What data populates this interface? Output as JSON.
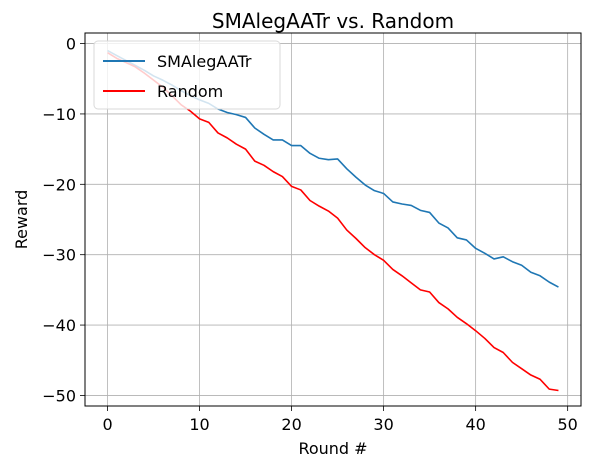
{
  "chart_data": {
    "type": "line",
    "title": "SMAlegAATr vs. Random",
    "xlabel": "Round #",
    "ylabel": "Reward",
    "xlim": [
      -2.45,
      51.45
    ],
    "ylim": [
      -51.5,
      1.5
    ],
    "xticks": [
      0,
      10,
      20,
      30,
      40,
      50
    ],
    "yticks": [
      0,
      -10,
      -20,
      -30,
      -40,
      -50
    ],
    "xtick_labels": [
      "0",
      "10",
      "20",
      "30",
      "40",
      "50"
    ],
    "ytick_labels": [
      "0",
      "−10",
      "−20",
      "−30",
      "−40",
      "−50"
    ],
    "grid": true,
    "legend_position": "top-left",
    "x": [
      0,
      1,
      2,
      3,
      4,
      5,
      6,
      7,
      8,
      9,
      10,
      11,
      12,
      13,
      14,
      15,
      16,
      17,
      18,
      19,
      20,
      21,
      22,
      23,
      24,
      25,
      26,
      27,
      28,
      29,
      30,
      31,
      32,
      33,
      34,
      35,
      36,
      37,
      38,
      39,
      40,
      41,
      42,
      43,
      44,
      45,
      46,
      47,
      48,
      49
    ],
    "series": [
      {
        "name": "SMAlegAATr",
        "color": "#1f77b4",
        "values": [
          -1.0,
          -1.7,
          -2.4,
          -3.1,
          -3.8,
          -4.6,
          -5.2,
          -5.9,
          -6.7,
          -7.4,
          -8.0,
          -8.5,
          -9.3,
          -9.8,
          -10.1,
          -10.5,
          -12.0,
          -12.9,
          -13.7,
          -13.7,
          -14.5,
          -14.5,
          -15.6,
          -16.3,
          -16.5,
          -16.4,
          -17.8,
          -19.0,
          -20.1,
          -20.9,
          -21.3,
          -22.5,
          -22.8,
          -23.0,
          -23.7,
          -24.0,
          -25.5,
          -26.2,
          -27.6,
          -27.9,
          -29.1,
          -29.8,
          -30.6,
          -30.3,
          -31.0,
          -31.5,
          -32.5,
          -33.0,
          -33.9,
          -34.6
        ]
      },
      {
        "name": "Random",
        "color": "#ff0000",
        "values": [
          -1.3,
          -2.1,
          -2.7,
          -3.3,
          -4.2,
          -5.2,
          -6.2,
          -7.4,
          -8.7,
          -9.6,
          -10.7,
          -11.2,
          -12.7,
          -13.4,
          -14.3,
          -15.0,
          -16.7,
          -17.3,
          -18.2,
          -18.9,
          -20.3,
          -20.8,
          -22.3,
          -23.1,
          -23.8,
          -24.8,
          -26.5,
          -27.7,
          -29.0,
          -30.0,
          -30.8,
          -32.1,
          -33.0,
          -34.0,
          -35.0,
          -35.3,
          -36.8,
          -37.7,
          -38.9,
          -39.8,
          -40.8,
          -41.9,
          -43.2,
          -43.9,
          -45.3,
          -46.2,
          -47.1,
          -47.7,
          -49.1,
          -49.3
        ]
      }
    ]
  }
}
